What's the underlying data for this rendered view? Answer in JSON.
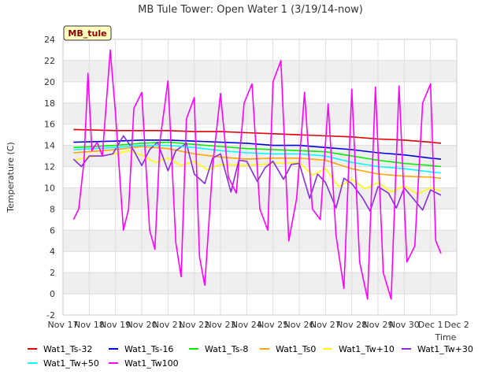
{
  "chart_data": {
    "type": "line",
    "title": "MB Tule Tower: Open Water 1 (3/19/14-now)",
    "xlabel": "Time",
    "ylabel": "Temperature (C)",
    "ylim": [
      -2,
      24
    ],
    "yticks": [
      -2,
      0,
      2,
      4,
      6,
      8,
      10,
      12,
      14,
      16,
      18,
      20,
      22,
      24
    ],
    "xlim": [
      0,
      15
    ],
    "xticks": [
      {
        "value": 0,
        "label": "Nov 17"
      },
      {
        "value": 1,
        "label": "Nov 18"
      },
      {
        "value": 2,
        "label": "Nov 19"
      },
      {
        "value": 3,
        "label": "Nov 20"
      },
      {
        "value": 4,
        "label": "Nov 21"
      },
      {
        "value": 5,
        "label": "Nov 22"
      },
      {
        "value": 6,
        "label": "Nov 23"
      },
      {
        "value": 7,
        "label": "Nov 24"
      },
      {
        "value": 8,
        "label": "Nov 25"
      },
      {
        "value": 9,
        "label": "Nov 26"
      },
      {
        "value": 10,
        "label": "Nov 27"
      },
      {
        "value": 11,
        "label": "Nov 28"
      },
      {
        "value": 12,
        "label": "Nov 29"
      },
      {
        "value": 13,
        "label": "Nov 30"
      },
      {
        "value": 14,
        "label": "Dec 1"
      },
      {
        "value": 15,
        "label": "Dec 2"
      }
    ],
    "badge": "MB_tule",
    "grid": true,
    "legend_position": "bottom",
    "series": [
      {
        "name": "Wat1_Ts-32",
        "color": "#dd0000",
        "x": [
          0.4,
          2,
          3,
          4,
          5,
          6,
          7,
          8,
          9,
          10,
          11,
          12,
          13,
          14,
          14.4
        ],
        "y": [
          15.5,
          15.4,
          15.4,
          15.4,
          15.3,
          15.3,
          15.2,
          15.1,
          15.0,
          14.9,
          14.8,
          14.6,
          14.5,
          14.3,
          14.2
        ]
      },
      {
        "name": "Wat1_Ts-16",
        "color": "#0000dd",
        "x": [
          0.4,
          2,
          3,
          4,
          5,
          6,
          7,
          8,
          9,
          10,
          11,
          12,
          13,
          14,
          14.4
        ],
        "y": [
          14.3,
          14.4,
          14.5,
          14.5,
          14.4,
          14.3,
          14.2,
          14.0,
          14.0,
          13.8,
          13.6,
          13.3,
          13.1,
          12.8,
          12.7
        ]
      },
      {
        "name": "Wat1_Ts-8",
        "color": "#00ee00",
        "x": [
          0.4,
          2,
          3,
          4,
          5,
          6,
          7,
          8,
          9,
          10,
          11,
          12,
          13,
          14,
          14.4
        ],
        "y": [
          13.8,
          14.0,
          14.2,
          14.3,
          14.1,
          13.9,
          13.7,
          13.6,
          13.5,
          13.4,
          13.0,
          12.6,
          12.3,
          12.1,
          12.0
        ]
      },
      {
        "name": "Wat1_Ts0",
        "color": "#ffa500",
        "x": [
          0.4,
          2,
          3,
          4,
          5,
          6,
          7,
          8,
          9,
          10,
          11,
          12,
          13,
          14,
          14.4
        ],
        "y": [
          13.3,
          13.6,
          13.9,
          13.7,
          13.2,
          12.9,
          12.7,
          12.8,
          12.8,
          12.6,
          11.8,
          11.3,
          11.1,
          11.0,
          10.9
        ]
      },
      {
        "name": "Wat1_Tw+10",
        "color": "#ffff00",
        "x": [
          0.4,
          1,
          2,
          2.5,
          3,
          3.5,
          4,
          4.5,
          5,
          5.5,
          6,
          7,
          8,
          9,
          9.5,
          10,
          10.5,
          11,
          11.5,
          12,
          12.5,
          13,
          13.5,
          14,
          14.4
        ],
        "y": [
          12.6,
          12.9,
          13.2,
          13.5,
          13.1,
          12.4,
          12.8,
          12.1,
          12.5,
          11.7,
          12.2,
          12.1,
          12.3,
          12.4,
          11.2,
          11.8,
          10.1,
          10.8,
          9.9,
          10.5,
          9.6,
          10.2,
          9.4,
          10.0,
          9.7
        ]
      },
      {
        "name": "Wat1_Tw+30",
        "color": "#8a2be2",
        "x": [
          0.4,
          0.7,
          1,
          1.5,
          1.9,
          2.3,
          2.7,
          3.0,
          3.3,
          3.6,
          4.0,
          4.3,
          4.7,
          5.0,
          5.4,
          5.7,
          6.0,
          6.4,
          6.7,
          7.0,
          7.4,
          7.7,
          8.0,
          8.4,
          8.7,
          9.0,
          9.4,
          9.7,
          10.0,
          10.4,
          10.7,
          11.0,
          11.4,
          11.7,
          12.0,
          12.4,
          12.7,
          13.0,
          13.4,
          13.7,
          14.0,
          14.4
        ],
        "y": [
          12.7,
          12.0,
          13.0,
          13.0,
          13.2,
          14.9,
          13.5,
          12.1,
          13.6,
          14.3,
          11.6,
          13.5,
          14.2,
          11.3,
          10.4,
          12.8,
          13.2,
          9.6,
          12.6,
          12.5,
          10.6,
          11.9,
          12.5,
          10.8,
          12.2,
          12.3,
          9.0,
          11.3,
          10.5,
          8.1,
          10.9,
          10.4,
          9.1,
          7.8,
          10.1,
          9.5,
          8.1,
          10.0,
          8.8,
          7.9,
          9.8,
          9.3
        ]
      },
      {
        "name": "Wat1_Tw+50",
        "color": "#00ffff",
        "x": [
          0.4,
          2,
          3,
          4,
          5,
          6,
          7,
          8,
          9,
          10,
          11,
          12,
          13,
          14,
          14.4
        ],
        "y": [
          13.6,
          13.8,
          14.0,
          14.0,
          13.8,
          13.5,
          13.3,
          13.2,
          13.2,
          13.0,
          12.4,
          12.0,
          11.8,
          11.5,
          11.4
        ]
      },
      {
        "name": "Wat1_Tw100",
        "color": "#ff00ff",
        "x": [
          0.4,
          0.6,
          0.8,
          0.95,
          1.1,
          1.3,
          1.5,
          1.8,
          2.0,
          2.3,
          2.5,
          2.7,
          3.0,
          3.3,
          3.5,
          3.7,
          4.0,
          4.3,
          4.5,
          4.7,
          5.0,
          5.2,
          5.4,
          5.7,
          6.0,
          6.3,
          6.6,
          6.9,
          7.2,
          7.5,
          7.8,
          8.0,
          8.3,
          8.6,
          8.9,
          9.2,
          9.5,
          9.8,
          10.1,
          10.4,
          10.7,
          11.0,
          11.3,
          11.6,
          11.9,
          12.2,
          12.5,
          12.8,
          13.1,
          13.4,
          13.7,
          14.0,
          14.2,
          14.4
        ],
        "y": [
          7.0,
          8.0,
          12.5,
          20.8,
          13.5,
          14.3,
          13.0,
          23.0,
          17.0,
          6.0,
          8.0,
          17.5,
          19.0,
          6.0,
          4.2,
          14.5,
          20.1,
          4.8,
          1.6,
          16.5,
          18.5,
          3.5,
          0.8,
          12.0,
          18.9,
          11.0,
          9.5,
          18.0,
          19.8,
          8.0,
          6.0,
          20.0,
          22.0,
          5.0,
          9.0,
          19.0,
          8.0,
          7.0,
          17.9,
          5.5,
          0.5,
          19.3,
          3.0,
          -0.5,
          19.5,
          2.0,
          -0.5,
          19.6,
          3.0,
          4.5,
          18.0,
          19.8,
          5.0,
          3.8
        ]
      }
    ]
  }
}
